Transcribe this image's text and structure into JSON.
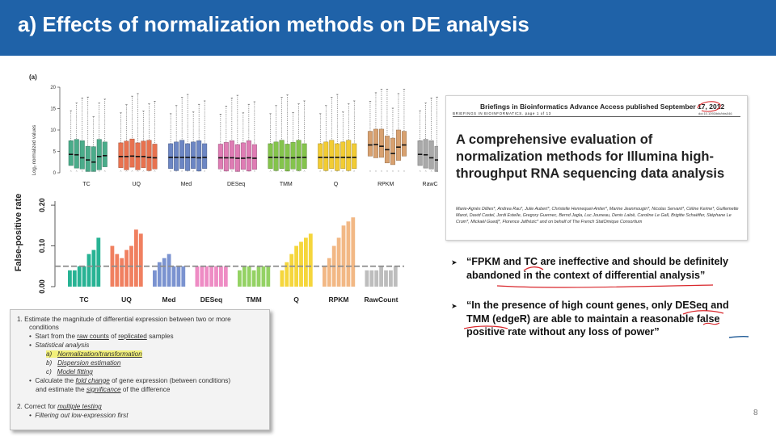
{
  "header": {
    "title": "a) Effects of normalization methods on DE analysis"
  },
  "page": {
    "number": "8"
  },
  "figure_a": {
    "panel_label": "(a)",
    "chart_data": {
      "type": "box",
      "title": "",
      "ylabel": "Log₂ normalized values",
      "ylim": [
        0,
        20
      ],
      "yticks": [
        0,
        5,
        10,
        15,
        20
      ],
      "groups": [
        {
          "name": "TC",
          "color": "#4aac8a",
          "medians": [
            4.3,
            4.2,
            3.5,
            3.0,
            2.5,
            3.8,
            4.0
          ]
        },
        {
          "name": "UQ",
          "color": "#e8724f",
          "medians": [
            3.8,
            3.8,
            3.9,
            3.8,
            3.8,
            3.6,
            3.5
          ]
        },
        {
          "name": "Med",
          "color": "#6c86c4",
          "medians": [
            3.6,
            3.6,
            3.6,
            3.6,
            3.6,
            3.5,
            3.6
          ]
        },
        {
          "name": "DESeq",
          "color": "#df7cb4",
          "medians": [
            3.5,
            3.5,
            3.5,
            3.4,
            3.4,
            3.5,
            3.4
          ]
        },
        {
          "name": "TMM",
          "color": "#84c44c",
          "medians": [
            3.6,
            3.6,
            3.6,
            3.5,
            3.5,
            3.6,
            3.6
          ]
        },
        {
          "name": "Q",
          "color": "#f2cc33",
          "medians": [
            3.6,
            3.6,
            3.6,
            3.6,
            3.6,
            3.6,
            3.6
          ]
        },
        {
          "name": "RPKM",
          "color": "#d8a170",
          "medians": [
            6.5,
            6.6,
            6.2,
            5.4,
            4.5,
            6.0,
            6.5
          ]
        },
        {
          "name": "RawCount",
          "color": "#a9a9a9",
          "medians": [
            4.3,
            4.2,
            3.5,
            3.0,
            2.5,
            3.8,
            4.0
          ]
        }
      ]
    }
  },
  "figure_b": {
    "chart_data": {
      "type": "bar",
      "ylabel": "False-positive rate",
      "ylim": [
        0,
        0.22
      ],
      "yticks": [
        "0.00",
        "0.10",
        "0.20"
      ],
      "reference_line": 0.05,
      "groups": [
        {
          "name": "TC",
          "color": "#28b394",
          "values": [
            0.04,
            0.04,
            0.05,
            0.05,
            0.08,
            0.09,
            0.12
          ]
        },
        {
          "name": "UQ",
          "color": "#f08060",
          "values": [
            0.1,
            0.08,
            0.07,
            0.09,
            0.1,
            0.14,
            0.13
          ]
        },
        {
          "name": "Med",
          "color": "#7b93d0",
          "values": [
            0.04,
            0.06,
            0.07,
            0.08,
            0.05,
            0.05,
            0.05
          ]
        },
        {
          "name": "DESeq",
          "color": "#ee8cc4",
          "values": [
            0.05,
            0.05,
            0.05,
            0.05,
            0.05,
            0.05,
            0.05
          ]
        },
        {
          "name": "TMM",
          "color": "#94d264",
          "values": [
            0.04,
            0.05,
            0.05,
            0.04,
            0.05,
            0.05,
            0.05
          ]
        },
        {
          "name": "Q",
          "color": "#f5d63c",
          "values": [
            0.04,
            0.06,
            0.08,
            0.1,
            0.11,
            0.12,
            0.13
          ]
        },
        {
          "name": "RPKM",
          "color": "#f2b885",
          "values": [
            0.05,
            0.07,
            0.1,
            0.12,
            0.15,
            0.16,
            0.17
          ]
        },
        {
          "name": "RawCount",
          "color": "#bdbdbd",
          "values": [
            0.04,
            0.04,
            0.04,
            0.05,
            0.04,
            0.04,
            0.05
          ]
        }
      ]
    }
  },
  "notes": {
    "l1a": "1.  Estimate the magnitude of differential expression between two or more",
    "l1b": "conditions",
    "l2_pre": "Start from the ",
    "l2_raw": "raw counts",
    "l2_mid": " of ",
    "l2_rep": "replicated",
    "l2_post": " samples",
    "l3": "Statistical analysis",
    "l4_letter": "a)",
    "l4_text": "Normalization/transformation",
    "l5_letter": "b)",
    "l5_text": "Dispersion estimation",
    "l6_letter": "c)",
    "l6_text": "Model fitting",
    "l7_pre": "Calculate the ",
    "l7_fold": "fold change",
    "l7_post": " of gene expression (between conditions)",
    "l8_pre": "and estimate the ",
    "l8_sig": "significance",
    "l8_post": " of the difference",
    "l9_pre": "2.  Correct for ",
    "l9_mt": "multiple testing",
    "l10": "Filtering out low-expression first"
  },
  "paper": {
    "journal_line": "Briefings in Bioinformatics Advance Access published September 17, 2012",
    "sub_line": "BRIEFINGS IN BIOINFORMATICS. page 1 of 13",
    "doi": "doi:10.1093/bib/bbs046",
    "title": "A comprehensive evaluation of normalization methods for Illumina high-throughput RNA sequencing data analysis",
    "authors": "Marie-Agnès Dillies*, Andrea Rau*, Julie Aubert*, Christelle Hennequet-Antier*, Marine Jeanmougin*, Nicolas Servant*, Céline Keime*, Guillemette Marot, David Castel, Jordi Estelle, Gregory Guernec, Bernd Jagla, Luc Jouneau, Denis Laloë, Caroline Le Gall, Brigitte Schaëffer, Stéphane Le Crom*, Mickaël Guedj*, Florence Jaffrézic* and on behalf of The French StatOmique Consortium"
  },
  "quotes": [
    {
      "line1": "“FPKM and TC are ineffective and should be definitely",
      "line2": "abandoned in the context of differential analysis”"
    },
    {
      "line1": "“In the presence of high count genes, only DESeq and",
      "line2": "TMM (edgeR) are able to maintain a reasonable false",
      "line3": "positive rate without any loss of power”"
    }
  ],
  "bullet_glyph": "➤"
}
